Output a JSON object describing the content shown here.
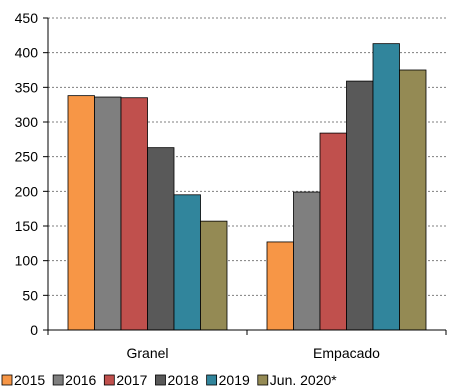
{
  "chart_data": {
    "type": "bar",
    "categories": [
      "Granel",
      "Empacado"
    ],
    "series": [
      {
        "name": "2015",
        "color": "#f79646",
        "values": [
          338,
          127
        ]
      },
      {
        "name": "2016",
        "color": "#7f7f7f",
        "values": [
          336,
          199
        ]
      },
      {
        "name": "2017",
        "color": "#c0504d",
        "values": [
          335,
          284
        ]
      },
      {
        "name": "2018",
        "color": "#595959",
        "values": [
          263,
          359
        ]
      },
      {
        "name": "2019",
        "color": "#31859c",
        "values": [
          195,
          413
        ]
      },
      {
        "name": "Jun. 2020*",
        "color": "#948a54",
        "values": [
          157,
          375
        ]
      }
    ],
    "ylim": [
      0,
      450
    ],
    "yticks": [
      0,
      50,
      100,
      150,
      200,
      250,
      300,
      350,
      400,
      450
    ],
    "grid": true,
    "legend": "bottom"
  }
}
